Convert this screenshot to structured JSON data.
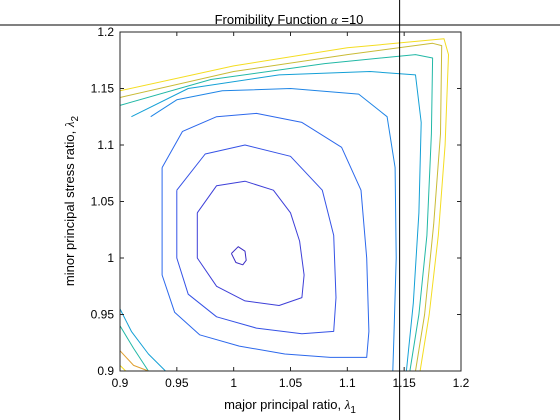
{
  "chart_data": {
    "type": "contour",
    "title": "Fromibility Function α =10",
    "title_text": "Fromibility Function ",
    "title_symbol": "α",
    "title_suffix": " =10",
    "xlabel": "major principal ratio, λ",
    "xlabel_text": "major principal ratio, ",
    "xlabel_symbol": "λ",
    "xlabel_subscript": "1",
    "ylabel": "minor principal stress ratio, λ",
    "ylabel_text": "minor principal stress ratio, ",
    "ylabel_symbol": "λ",
    "ylabel_subscript": "2",
    "xlim": [
      0.9,
      1.2
    ],
    "ylim": [
      0.9,
      1.2
    ],
    "xticks": [
      "0.9",
      "0.95",
      "1",
      "1.05",
      "1.1",
      "1.15",
      "1.2"
    ],
    "yticks": [
      "0.9",
      "0.95",
      "1",
      "1.05",
      "1.1",
      "1.15",
      "1.2"
    ],
    "xtick_values": [
      0.9,
      0.95,
      1.0,
      1.05,
      1.1,
      1.15,
      1.2
    ],
    "ytick_values": [
      0.9,
      0.95,
      1.0,
      1.05,
      1.1,
      1.15,
      1.2
    ],
    "grid": false,
    "vertical_line_x": 1.146,
    "colormap": [
      "#3b2dc4",
      "#3d3fd8",
      "#3552e6",
      "#2c68ec",
      "#1f85e6",
      "#14a0d6",
      "#22b8a6",
      "#6cc46a",
      "#c9bb36",
      "#f4dd21",
      "#f7e81a"
    ],
    "contours": [
      {
        "level": 1,
        "color": "#3b2dc4",
        "points": [
          [
            0.998,
            1.004
          ],
          [
            1.004,
            1.01
          ],
          [
            1.01,
            1.006
          ],
          [
            1.011,
            0.998
          ],
          [
            1.008,
            0.994
          ],
          [
            1.002,
            0.996
          ],
          [
            0.998,
            1.004
          ]
        ]
      },
      {
        "level": 2,
        "color": "#3d3fd8",
        "points": [
          [
            0.968,
            1.04
          ],
          [
            0.985,
            1.064
          ],
          [
            1.01,
            1.068
          ],
          [
            1.035,
            1.06
          ],
          [
            1.05,
            1.04
          ],
          [
            1.058,
            1.015
          ],
          [
            1.062,
            0.985
          ],
          [
            1.06,
            0.965
          ],
          [
            1.04,
            0.958
          ],
          [
            1.01,
            0.962
          ],
          [
            0.985,
            0.975
          ],
          [
            0.968,
            1.0
          ],
          [
            0.968,
            1.04
          ]
        ]
      },
      {
        "level": 3,
        "color": "#3552e6",
        "points": [
          [
            0.95,
            1.06
          ],
          [
            0.975,
            1.092
          ],
          [
            1.01,
            1.1
          ],
          [
            1.05,
            1.09
          ],
          [
            1.078,
            1.06
          ],
          [
            1.088,
            1.02
          ],
          [
            1.09,
            0.965
          ],
          [
            1.088,
            0.935
          ],
          [
            1.06,
            0.933
          ],
          [
            1.02,
            0.938
          ],
          [
            0.985,
            0.948
          ],
          [
            0.96,
            0.968
          ],
          [
            0.95,
            1.0
          ],
          [
            0.95,
            1.06
          ]
        ]
      },
      {
        "level": 4,
        "color": "#2c68ec",
        "points": [
          [
            0.937,
            1.08
          ],
          [
            0.955,
            1.112
          ],
          [
            0.985,
            1.125
          ],
          [
            1.02,
            1.128
          ],
          [
            1.06,
            1.12
          ],
          [
            1.095,
            1.098
          ],
          [
            1.112,
            1.06
          ],
          [
            1.117,
            1.0
          ],
          [
            1.119,
            0.935
          ],
          [
            1.117,
            0.912
          ],
          [
            1.085,
            0.912
          ],
          [
            1.045,
            0.915
          ],
          [
            1.005,
            0.922
          ],
          [
            0.97,
            0.932
          ],
          [
            0.948,
            0.952
          ],
          [
            0.937,
            0.985
          ],
          [
            0.937,
            1.08
          ]
        ]
      },
      {
        "level": 5,
        "color": "#1f85e6",
        "points": [
          [
            0.927,
            1.125
          ],
          [
            0.95,
            1.14
          ],
          [
            0.99,
            1.148
          ],
          [
            1.05,
            1.15
          ],
          [
            1.11,
            1.145
          ],
          [
            1.135,
            1.125
          ],
          [
            1.142,
            1.08
          ],
          [
            1.143,
            1.0
          ],
          [
            1.141,
            0.93
          ],
          [
            1.14,
            0.9
          ]
        ]
      },
      {
        "level": 6,
        "color": "#14a0d6",
        "points": [
          [
            0.91,
            1.125
          ],
          [
            0.96,
            1.15
          ],
          [
            1.04,
            1.162
          ],
          [
            1.12,
            1.165
          ],
          [
            1.16,
            1.162
          ],
          [
            1.165,
            1.12
          ],
          [
            1.163,
            1.04
          ],
          [
            1.158,
            0.96
          ],
          [
            1.152,
            0.9
          ]
        ]
      },
      {
        "level": 6.5,
        "color": "#14a0d6",
        "points": [
          [
            0.9,
            0.955
          ],
          [
            0.91,
            0.935
          ],
          [
            0.925,
            0.915
          ],
          [
            0.94,
            0.9
          ]
        ]
      },
      {
        "level": 7,
        "color": "#22b8a6",
        "points": [
          [
            0.9,
            1.135
          ],
          [
            0.98,
            1.158
          ],
          [
            1.08,
            1.172
          ],
          [
            1.16,
            1.18
          ],
          [
            1.175,
            1.177
          ],
          [
            1.174,
            1.11
          ],
          [
            1.17,
            1.02
          ],
          [
            1.163,
            0.95
          ],
          [
            1.155,
            0.9
          ]
        ]
      },
      {
        "level": 7.5,
        "color": "#22b8a6",
        "points": [
          [
            0.9,
            0.94
          ],
          [
            0.912,
            0.92
          ],
          [
            0.925,
            0.9
          ]
        ]
      },
      {
        "level": 8,
        "color": "#c9bb36",
        "points": [
          [
            0.9,
            1.142
          ],
          [
            1.0,
            1.165
          ],
          [
            1.1,
            1.18
          ],
          [
            1.175,
            1.19
          ],
          [
            1.183,
            1.188
          ],
          [
            1.182,
            1.11
          ],
          [
            1.176,
            1.03
          ],
          [
            1.168,
            0.95
          ],
          [
            1.16,
            0.9
          ]
        ]
      },
      {
        "level": 8.5,
        "color": "#e0a030",
        "points": [
          [
            0.9,
            0.918
          ],
          [
            0.912,
            0.905
          ],
          [
            0.925,
            0.9
          ]
        ]
      },
      {
        "level": 9,
        "color": "#f4dd21",
        "points": [
          [
            0.9,
            1.148
          ],
          [
            1.0,
            1.17
          ],
          [
            1.1,
            1.186
          ],
          [
            1.185,
            1.194
          ],
          [
            1.189,
            1.18
          ],
          [
            1.186,
            1.1
          ],
          [
            1.18,
            1.02
          ],
          [
            1.172,
            0.95
          ],
          [
            1.164,
            0.9
          ]
        ]
      },
      {
        "level": 9.5,
        "color": "#f4dd21",
        "points": [
          [
            0.9,
            0.905
          ],
          [
            0.905,
            0.9
          ]
        ]
      }
    ]
  }
}
